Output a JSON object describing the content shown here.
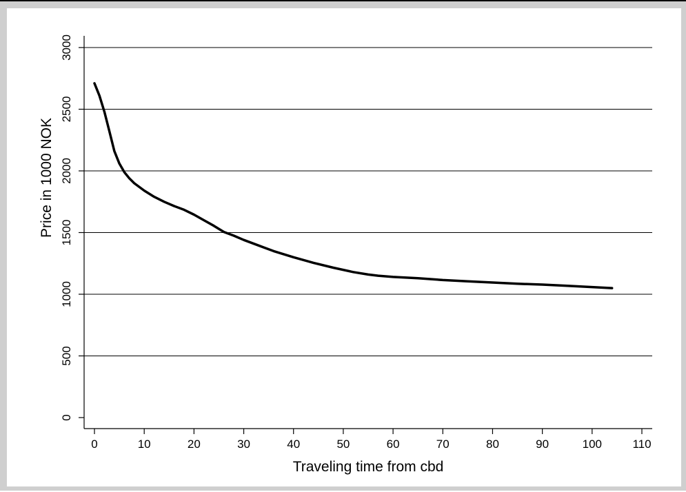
{
  "chart_data": {
    "type": "line",
    "title": "",
    "xlabel": "Traveling time from cbd",
    "ylabel": "Price in 1000 NOK",
    "xlim": [
      0,
      110
    ],
    "ylim": [
      0,
      3000
    ],
    "x_ticks": [
      0,
      10,
      20,
      30,
      40,
      50,
      60,
      70,
      80,
      90,
      100,
      110
    ],
    "y_ticks": [
      0,
      500,
      1000,
      1500,
      2000,
      2500,
      3000
    ],
    "grid": "horizontal",
    "legend": "none",
    "series": [
      {
        "color": "#000000",
        "x": [
          0,
          1,
          2,
          3,
          4,
          5,
          6,
          7,
          8,
          10,
          12,
          14,
          16,
          18,
          20,
          22,
          24,
          26,
          28,
          30,
          33,
          36,
          40,
          44,
          48,
          52,
          55,
          57,
          60,
          65,
          70,
          75,
          80,
          85,
          90,
          95,
          100,
          104
        ],
        "y": [
          2710,
          2610,
          2480,
          2320,
          2160,
          2060,
          1990,
          1940,
          1900,
          1840,
          1790,
          1750,
          1715,
          1685,
          1645,
          1600,
          1555,
          1505,
          1475,
          1440,
          1395,
          1350,
          1300,
          1255,
          1215,
          1180,
          1160,
          1150,
          1140,
          1130,
          1115,
          1105,
          1095,
          1085,
          1078,
          1068,
          1058,
          1050
        ]
      }
    ]
  }
}
